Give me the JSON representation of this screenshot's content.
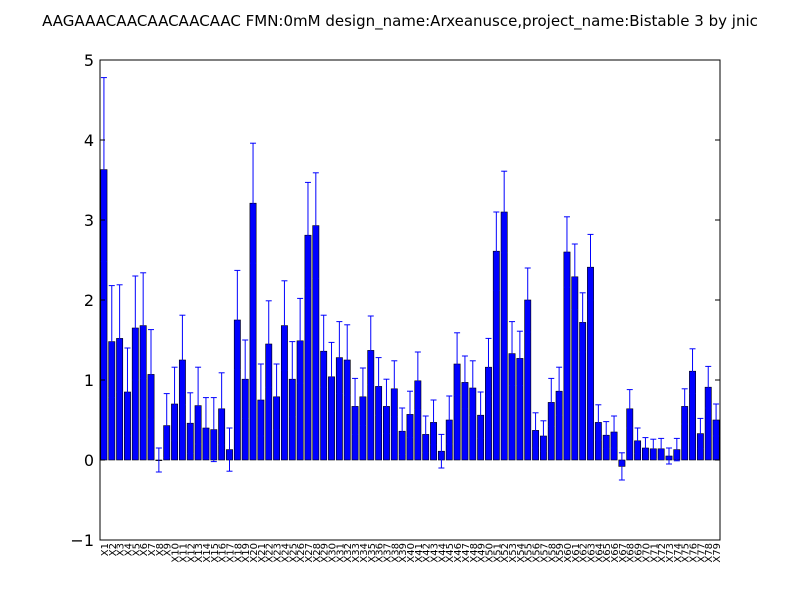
{
  "title": "AAGAAACAACAACAACAAC  FMN:0mM  design_name:Arxeanusce,project_name:Bistable 3 by jnic",
  "chart_data": {
    "type": "bar",
    "title": "AAGAAACAACAACAACAAC  FMN:0mM  design_name:Arxeanusce,project_name:Bistable 3 by jnic",
    "xlabel": "",
    "ylabel": "",
    "ylim": [
      -1,
      5
    ],
    "yticks": [
      -1,
      0,
      1,
      2,
      3,
      4,
      5
    ],
    "grid": false,
    "bar_color": "#0000ff",
    "error_color": "#0000ff",
    "categories": [
      "X1",
      "X2",
      "X3",
      "X4",
      "X5",
      "X6",
      "X7",
      "X8",
      "X9",
      "X10",
      "X11",
      "X12",
      "X13",
      "X14",
      "X15",
      "X16",
      "X17",
      "X18",
      "X19",
      "X20",
      "X21",
      "X22",
      "X23",
      "X24",
      "X25",
      "X26",
      "X27",
      "X28",
      "X29",
      "X30",
      "X31",
      "X32",
      "X33",
      "X34",
      "X35",
      "X36",
      "X37",
      "X38",
      "X39",
      "X40",
      "X41",
      "X42",
      "X43",
      "X44",
      "X45",
      "X46",
      "X47",
      "X48",
      "X49",
      "X50",
      "X51",
      "X52",
      "X53",
      "X54",
      "X55",
      "X56",
      "X57",
      "X58",
      "X59",
      "X60",
      "X61",
      "X62",
      "X63",
      "X64",
      "X65",
      "X66",
      "X67",
      "X68",
      "X69",
      "X70",
      "X71",
      "X72",
      "X73",
      "X74",
      "X75",
      "X76",
      "X77",
      "X78",
      "X79"
    ],
    "values": [
      3.63,
      1.48,
      1.52,
      0.85,
      1.65,
      1.68,
      1.07,
      0.0,
      0.43,
      0.7,
      1.25,
      0.46,
      0.68,
      0.4,
      0.38,
      0.64,
      0.13,
      1.75,
      1.01,
      3.21,
      0.75,
      1.45,
      0.79,
      1.68,
      1.01,
      1.49,
      2.81,
      2.93,
      1.36,
      1.04,
      1.28,
      1.25,
      0.67,
      0.79,
      1.37,
      0.92,
      0.67,
      0.89,
      0.36,
      0.57,
      0.99,
      0.32,
      0.47,
      0.11,
      0.5,
      1.2,
      0.97,
      0.9,
      0.56,
      1.16,
      2.61,
      3.1,
      1.33,
      1.27,
      2.0,
      0.37,
      0.3,
      0.72,
      0.86,
      2.6,
      2.29,
      1.72,
      2.41,
      0.47,
      0.31,
      0.35,
      -0.08,
      0.64,
      0.24,
      0.15,
      0.14,
      0.14,
      0.05,
      0.13,
      0.67,
      1.11,
      0.33,
      0.91,
      0.5
    ],
    "errors": [
      1.15,
      0.7,
      0.67,
      0.55,
      0.65,
      0.66,
      0.56,
      0.15,
      0.4,
      0.46,
      0.56,
      0.38,
      0.48,
      0.38,
      0.4,
      0.45,
      0.27,
      0.62,
      0.49,
      0.75,
      0.45,
      0.54,
      0.41,
      0.56,
      0.47,
      0.53,
      0.66,
      0.66,
      0.45,
      0.43,
      0.45,
      0.44,
      0.35,
      0.36,
      0.43,
      0.36,
      0.34,
      0.35,
      0.29,
      0.29,
      0.36,
      0.23,
      0.28,
      0.21,
      0.3,
      0.39,
      0.33,
      0.34,
      0.29,
      0.36,
      0.49,
      0.51,
      0.4,
      0.34,
      0.4,
      0.22,
      0.19,
      0.3,
      0.3,
      0.44,
      0.41,
      0.37,
      0.41,
      0.22,
      0.17,
      0.2,
      0.17,
      0.24,
      0.16,
      0.13,
      0.12,
      0.13,
      0.1,
      0.14,
      0.22,
      0.28,
      0.19,
      0.26,
      0.2
    ]
  }
}
